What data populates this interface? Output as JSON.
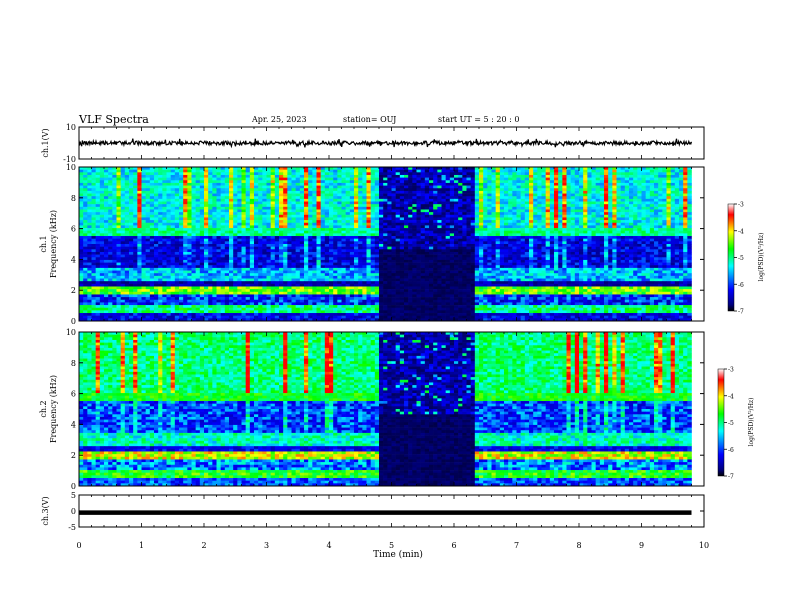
{
  "header": {
    "title": "VLF Spectra",
    "date": "Apr. 25, 2023",
    "station": "station= OUJ",
    "start": "start  UT =   5 : 20 : 0"
  },
  "chart_data": [
    {
      "type": "line",
      "name": "ch1-waveform",
      "ylabel": "ch.1(V)",
      "ylim": [
        -10,
        10
      ],
      "y_ticks": [
        "10",
        "-10"
      ],
      "x_range": [
        0,
        10
      ],
      "trace_end_min": 9.8
    },
    {
      "type": "heatmap",
      "name": "ch1-spectrogram",
      "ylabel_lines": [
        "ch.1",
        "Frequency  (kHz)"
      ],
      "ylim": [
        0,
        10
      ],
      "y_ticks": [
        "0",
        "2",
        "4",
        "6",
        "8",
        "10"
      ],
      "colorbar": {
        "label": "log(PSD)(V²/Hz)",
        "ticks": [
          "-3",
          "-4",
          "-5",
          "-6",
          "-7"
        ],
        "range": [
          -7,
          -3
        ]
      },
      "quiet_interval_min": [
        4.8,
        6.3
      ],
      "data_end_min": 9.8
    },
    {
      "type": "heatmap",
      "name": "ch2-spectrogram",
      "ylabel_lines": [
        "ch.2",
        "Frequency  (kHz)"
      ],
      "ylim": [
        0,
        10
      ],
      "y_ticks": [
        "0",
        "2",
        "4",
        "6",
        "8",
        "10"
      ],
      "colorbar": {
        "label": "log(PSD)(V²/Hz)",
        "ticks": [
          "-3",
          "-4",
          "-5",
          "-6",
          "-7"
        ],
        "range": [
          -7,
          -3
        ]
      },
      "quiet_interval_min": [
        4.8,
        6.3
      ],
      "data_end_min": 9.8
    },
    {
      "type": "line",
      "name": "ch3-level",
      "ylabel": "ch.3(V)",
      "ylim": [
        -5,
        5
      ],
      "y_ticks": [
        "5",
        "0",
        "-5"
      ],
      "level_v": -0.5,
      "x_range": [
        0,
        9.8
      ]
    }
  ],
  "x_axis": {
    "label": "Time  (min)",
    "range": [
      0,
      10
    ],
    "ticks": [
      "0",
      "1",
      "2",
      "3",
      "4",
      "5",
      "6",
      "7",
      "8",
      "9",
      "10"
    ]
  },
  "colors": {
    "frame": "#000000",
    "trace": "#000000",
    "colormap": [
      "#00007f",
      "#0000ff",
      "#00ffff",
      "#00ff00",
      "#ffff00",
      "#ff0000",
      "#ffffff"
    ]
  }
}
